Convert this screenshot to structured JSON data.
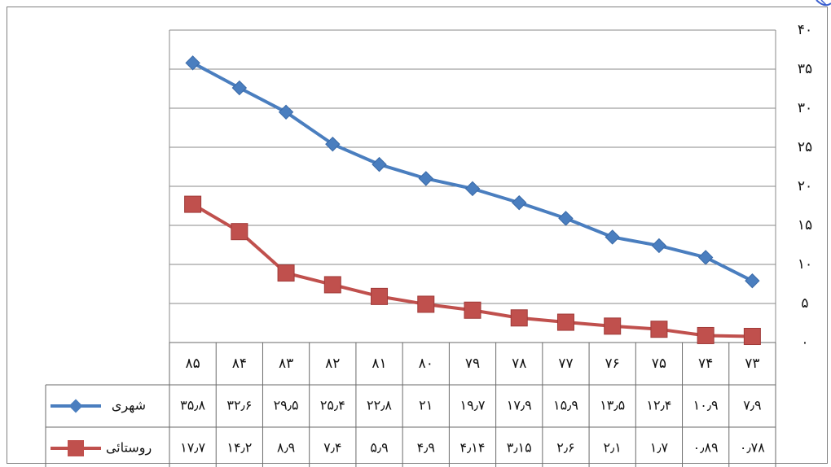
{
  "chart_data": {
    "type": "line",
    "categories": [
      "۸۵",
      "۸۴",
      "۸۳",
      "۸۲",
      "۸۱",
      "۸۰",
      "۷۹",
      "۷۸",
      "۷۷",
      "۷۶",
      "۷۵",
      "۷۴",
      "۷۳"
    ],
    "series": [
      {
        "name": "شهری",
        "color": "#4a7ebf",
        "marker": "diamond",
        "values": [
          35.8,
          32.6,
          29.5,
          25.4,
          22.8,
          21,
          19.7,
          17.9,
          15.9,
          13.5,
          12.4,
          10.9,
          7.9
        ],
        "value_labels": [
          "۳۵٫۸",
          "۳۲٫۶",
          "۲۹٫۵",
          "۲۵٫۴",
          "۲۲٫۸",
          "۲۱",
          "۱۹٫۷",
          "۱۷٫۹",
          "۱۵٫۹",
          "۱۳٫۵",
          "۱۲٫۴",
          "۱۰٫۹",
          "۷٫۹"
        ]
      },
      {
        "name": "روستائی",
        "color": "#c0504d",
        "marker": "square",
        "values": [
          17.7,
          14.2,
          8.9,
          7.4,
          5.9,
          4.9,
          4.14,
          3.15,
          2.6,
          2.1,
          1.7,
          0.89,
          0.78
        ],
        "value_labels": [
          "۱۷٫۷",
          "۱۴٫۲",
          "۸٫۹",
          "۷٫۴",
          "۵٫۹",
          "۴٫۹",
          "۴٫۱۴",
          "۳٫۱۵",
          "۲٫۶",
          "۲٫۱",
          "۱٫۷",
          "۰٫۸۹",
          "۰٫۷۸"
        ]
      }
    ],
    "ylim": [
      0,
      40
    ],
    "yticks": [
      0,
      5,
      10,
      15,
      20,
      25,
      30,
      35,
      40
    ],
    "ytick_labels": [
      "۰",
      "۵",
      "۱۰",
      "۱۵",
      "۲۰",
      "۲۵",
      "۳۰",
      "۳۵",
      "۴۰"
    ],
    "y_axis_side": "right",
    "grid": true,
    "legend": "data-table-left",
    "title": "",
    "xlabel": "",
    "ylabel": ""
  }
}
